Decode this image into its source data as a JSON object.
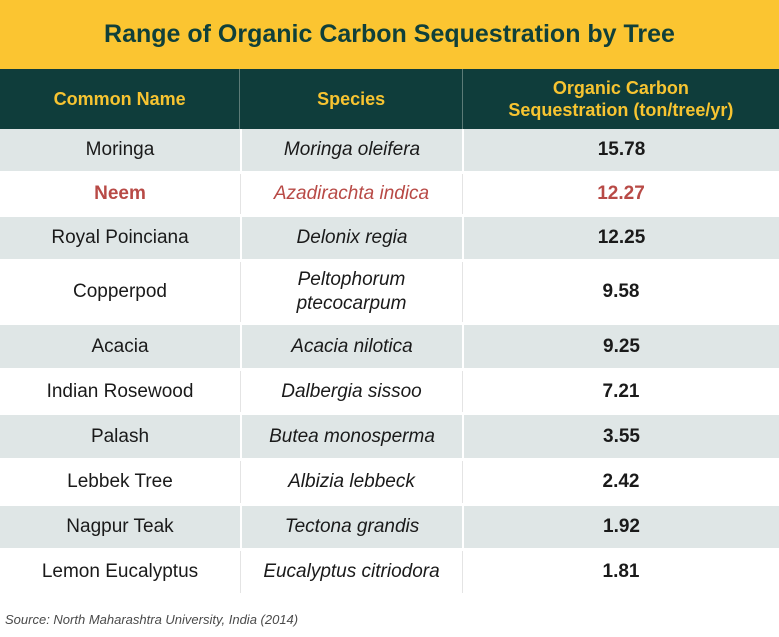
{
  "chart_data": {
    "type": "table",
    "title": "Range of Organic Carbon Sequestration by Tree",
    "columns": [
      "Common Name",
      "Species",
      "Organic Carbon\nSequestration (ton/tree/yr)"
    ],
    "rows": [
      {
        "common_name": "Moringa",
        "species": "Moringa oleifera",
        "value": "15.78"
      },
      {
        "common_name": "Neem",
        "species": "Azadirachta indica",
        "value": "12.27",
        "highlight": true
      },
      {
        "common_name": "Royal Poinciana",
        "species": "Delonix regia",
        "value": "12.25"
      },
      {
        "common_name": "Copperpod",
        "species": "Peltophorum ptecocarpum",
        "value": "9.58"
      },
      {
        "common_name": "Acacia",
        "species": "Acacia nilotica",
        "value": "9.25"
      },
      {
        "common_name": "Indian Rosewood",
        "species": "Dalbergia sissoo",
        "value": "7.21"
      },
      {
        "common_name": "Palash",
        "species": "Butea monosperma",
        "value": "3.55"
      },
      {
        "common_name": "Lebbek Tree",
        "species": "Albizia lebbeck",
        "value": "2.42"
      },
      {
        "common_name": "Nagpur Teak",
        "species": "Tectona grandis",
        "value": "1.92"
      },
      {
        "common_name": "Lemon Eucalyptus",
        "species": "Eucalyptus citriodora",
        "value": "1.81"
      }
    ],
    "source": "Source: North Maharashtra University, India (2014)"
  },
  "colors": {
    "title_background": "#fbc531",
    "header_background": "#0f3d3b",
    "header_text": "#f7c431",
    "row_shade": "#dfe6e6",
    "highlight_text": "#b84a46"
  }
}
